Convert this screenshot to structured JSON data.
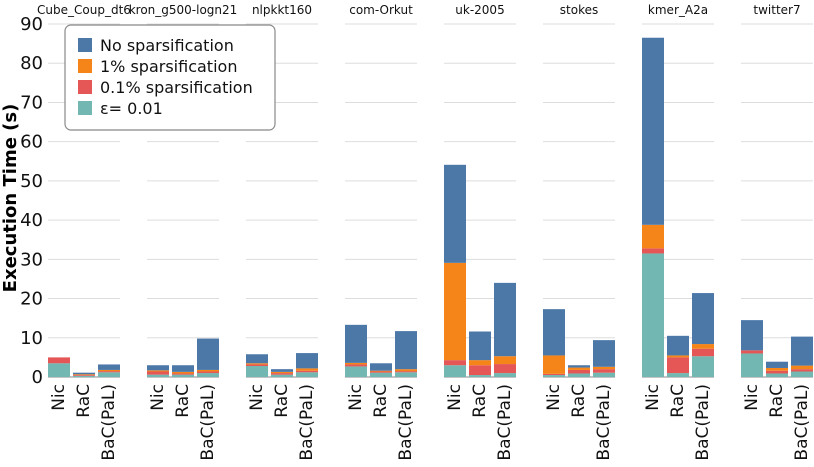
{
  "chart_data": {
    "type": "bar",
    "stacked": true,
    "ylabel": "Execution Time (s)",
    "ylim": [
      0,
      90
    ],
    "yticks": [
      0,
      10,
      20,
      30,
      40,
      50,
      60,
      70,
      80,
      90
    ],
    "grid": true,
    "legend_position": "top-left",
    "categories": [
      "Nic",
      "RaC",
      "BaC(PaL)"
    ],
    "series": [
      {
        "name": "ε= 0.01",
        "color": "#72b7b2"
      },
      {
        "name": "0.1% sparsification",
        "color": "#e45756"
      },
      {
        "name": "1% sparsification",
        "color": "#f58518"
      },
      {
        "name": "No sparsification",
        "color": "#4c78a8"
      }
    ],
    "legend_order": [
      "No sparsification",
      "1% sparsification",
      "0.1% sparsification",
      "ε= 0.01"
    ],
    "facets": [
      {
        "label": "Cube_Coup_dt6",
        "bars": [
          {
            "category": "Nic",
            "values": [
              3.5,
              1.5,
              0,
              0
            ]
          },
          {
            "category": "RaC",
            "values": [
              0.3,
              0.2,
              0.2,
              0.4
            ]
          },
          {
            "category": "BaC(PaL)",
            "values": [
              1.2,
              0.3,
              0.3,
              1.4
            ]
          }
        ]
      },
      {
        "label": "kron_g500-logn21",
        "bars": [
          {
            "category": "Nic",
            "values": [
              0.6,
              0.8,
              0.3,
              1.3
            ]
          },
          {
            "category": "RaC",
            "values": [
              0.6,
              0.3,
              0.4,
              1.7
            ]
          },
          {
            "category": "BaC(PaL)",
            "values": [
              1.0,
              0.4,
              0.4,
              8.0
            ]
          }
        ]
      },
      {
        "label": "nlpkkt160",
        "bars": [
          {
            "category": "Nic",
            "values": [
              2.8,
              0.4,
              0.3,
              2.3
            ]
          },
          {
            "category": "RaC",
            "values": [
              0.6,
              0.4,
              0.3,
              0.7
            ]
          },
          {
            "category": "BaC(PaL)",
            "values": [
              1.2,
              0.4,
              0.6,
              3.9
            ]
          }
        ]
      },
      {
        "label": "com-Orkut",
        "bars": [
          {
            "category": "Nic",
            "values": [
              2.7,
              0.5,
              0.4,
              9.7
            ]
          },
          {
            "category": "RaC",
            "values": [
              1.1,
              0.3,
              0.2,
              1.9
            ]
          },
          {
            "category": "BaC(PaL)",
            "values": [
              1.2,
              0.3,
              0.5,
              9.7
            ]
          }
        ]
      },
      {
        "label": "uk-2005",
        "bars": [
          {
            "category": "Nic",
            "values": [
              3.0,
              1.3,
              24.8,
              25.0
            ]
          },
          {
            "category": "RaC",
            "values": [
              0.5,
              2.5,
              1.3,
              7.3
            ]
          },
          {
            "category": "BaC(PaL)",
            "values": [
              1.0,
              2.3,
              2.0,
              18.7
            ]
          }
        ]
      },
      {
        "label": "stokes",
        "bars": [
          {
            "category": "Nic",
            "values": [
              0.5,
              0.3,
              4.7,
              11.8
            ]
          },
          {
            "category": "RaC",
            "values": [
              0.9,
              0.9,
              0.6,
              0.6
            ]
          },
          {
            "category": "BaC(PaL)",
            "values": [
              1.1,
              0.9,
              0.6,
              6.8
            ]
          }
        ]
      },
      {
        "label": "kmer_A2a",
        "bars": [
          {
            "category": "Nic",
            "values": [
              31.5,
              1.3,
              6.0,
              47.7
            ]
          },
          {
            "category": "RaC",
            "values": [
              1.0,
              4.0,
              0.5,
              5.0
            ]
          },
          {
            "category": "BaC(PaL)",
            "values": [
              5.3,
              1.9,
              1.2,
              13.0
            ]
          }
        ]
      },
      {
        "label": "twitter7",
        "bars": [
          {
            "category": "Nic",
            "values": [
              6.0,
              0.8,
              0,
              7.7
            ]
          },
          {
            "category": "RaC",
            "values": [
              0.9,
              0.7,
              0.7,
              1.6
            ]
          },
          {
            "category": "BaC(PaL)",
            "values": [
              1.4,
              0.6,
              0.9,
              7.4
            ]
          }
        ]
      }
    ]
  }
}
